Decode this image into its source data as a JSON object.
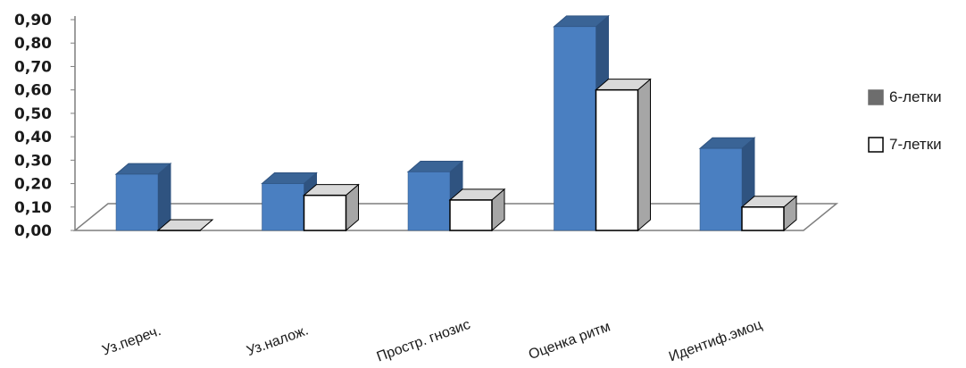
{
  "chart_data": {
    "type": "bar",
    "categories": [
      "Уз.переч.",
      "Уз.налож.",
      "Простр. гнозис",
      "Оценка ритм",
      "Идентиф.эмоц"
    ],
    "series": [
      {
        "name": "6-летки",
        "values": [
          0.24,
          0.2,
          0.25,
          0.87,
          0.35
        ]
      },
      {
        "name": "7-летки",
        "values": [
          0.0,
          0.15,
          0.13,
          0.6,
          0.1
        ]
      }
    ],
    "ylim": [
      0,
      0.9
    ],
    "yticks": [
      "0,00",
      "0,10",
      "0,20",
      "0,30",
      "0,40",
      "0,50",
      "0,60",
      "0,70",
      "0,80",
      "0,90"
    ],
    "legend_position": "right",
    "grid": false,
    "style": "3d-clustered-column",
    "colors": {
      "series1_front": "#4a7fc1",
      "series1_top": "#3a6496",
      "series1_side": "#2f5380",
      "series2_front": "#ffffff",
      "series2_top": "#d9d9d9",
      "series2_side": "#a6a6a6",
      "legend_series1": "#6d6d6d",
      "floor_line": "#7f7f7f"
    }
  }
}
